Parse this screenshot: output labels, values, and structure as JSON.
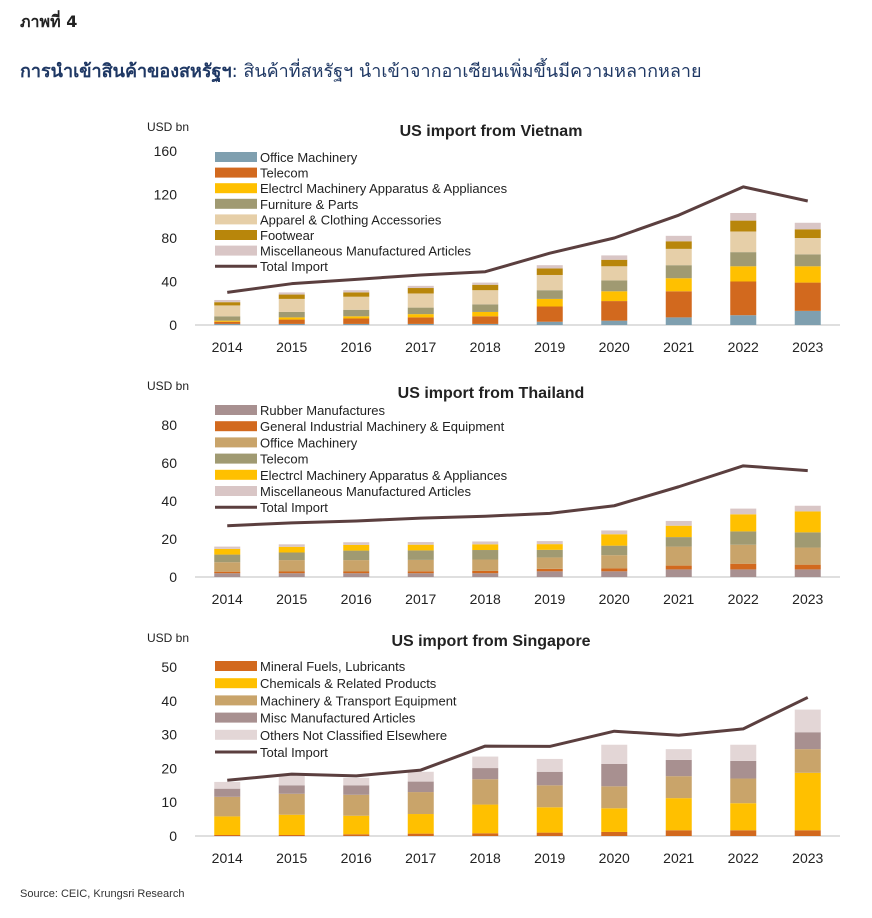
{
  "figure_label": "ภาพที่ 4",
  "headline": {
    "bold": "การนำเข้าสินค้าของสหรัฐฯ",
    "rest": ": สินค้าที่สหรัฐฯ นำเข้าจากอาเซียนเพิ่มขึ้นมีความหลากหลาย"
  },
  "source": "Source: CEIC, Krungsri Research",
  "chart_data": [
    {
      "type": "bar",
      "stacked": true,
      "title": "US import from Vietnam",
      "ylabel": "USD bn",
      "ylim": [
        0,
        160
      ],
      "yticks": [
        0,
        40,
        80,
        120,
        160
      ],
      "legend_position": "top-left",
      "categories": [
        "2014",
        "2015",
        "2016",
        "2017",
        "2018",
        "2019",
        "2020",
        "2021",
        "2022",
        "2023"
      ],
      "series": [
        {
          "name": "Office Machinery",
          "color": "#7F9FAF",
          "values": [
            1,
            1,
            1,
            1,
            1,
            3,
            4,
            7,
            9,
            13
          ]
        },
        {
          "name": "Telecom",
          "color": "#D2691E",
          "values": [
            2,
            4,
            5,
            6,
            7,
            14,
            18,
            24,
            31,
            26
          ]
        },
        {
          "name": "Electrcl Machinery Apparatus & Appliances",
          "color": "#FFC000",
          "values": [
            1,
            2,
            2,
            3,
            4,
            7,
            9,
            12,
            14,
            15
          ]
        },
        {
          "name": "Furniture & Parts",
          "color": "#A09A72",
          "values": [
            4,
            5,
            6,
            6,
            7,
            8,
            10,
            12,
            13,
            11
          ]
        },
        {
          "name": "Apparel & Clothing Accessories",
          "color": "#E6CFA8",
          "values": [
            10,
            12,
            12,
            13,
            13,
            14,
            13,
            15,
            19,
            15
          ]
        },
        {
          "name": "Footwear",
          "color": "#B8860B",
          "values": [
            3,
            4,
            4,
            5,
            5,
            6,
            6,
            7,
            10,
            8
          ]
        },
        {
          "name": "Miscellaneous Manufactured Articles",
          "color": "#D9C6C6",
          "values": [
            2,
            2,
            2,
            2,
            2,
            3,
            4,
            5,
            7,
            6
          ]
        }
      ],
      "line": {
        "name": "Total Import",
        "color": "#5B3F3F",
        "values": [
          30,
          38,
          42,
          46,
          49,
          66,
          80,
          101,
          127,
          114
        ]
      }
    },
    {
      "type": "bar",
      "stacked": true,
      "title": "US import from Thailand",
      "ylabel": "USD bn",
      "ylim": [
        0,
        80
      ],
      "yticks": [
        0,
        20,
        40,
        60,
        80
      ],
      "legend_position": "top-left",
      "categories": [
        "2014",
        "2015",
        "2016",
        "2017",
        "2018",
        "2019",
        "2020",
        "2021",
        "2022",
        "2023"
      ],
      "series": [
        {
          "name": "Rubber Manufactures",
          "color": "#A89090",
          "values": [
            2,
            2,
            2,
            2,
            2,
            3,
            3,
            4,
            4,
            4
          ]
        },
        {
          "name": "General Industrial Machinery & Equipment",
          "color": "#D2691E",
          "values": [
            0.8,
            0.9,
            0.9,
            1,
            1.2,
            1.3,
            1.5,
            2,
            3,
            2.5
          ]
        },
        {
          "name": "Office Machinery",
          "color": "#C9A46A",
          "values": [
            5,
            6,
            6,
            6,
            6,
            6,
            7,
            10,
            10,
            9
          ]
        },
        {
          "name": "Telecom",
          "color": "#A09A72",
          "values": [
            4,
            4,
            5,
            5,
            5,
            4,
            5,
            5,
            7,
            8
          ]
        },
        {
          "name": "Electrcl Machinery Apparatus & Appliances",
          "color": "#FFC000",
          "values": [
            3,
            3,
            3,
            3,
            3,
            3,
            6,
            6,
            9,
            11
          ]
        },
        {
          "name": "Miscellaneous Manufactured Articles",
          "color": "#D9C6C6",
          "values": [
            1.2,
            1.3,
            1.4,
            1.4,
            1.5,
            1.6,
            2,
            2.5,
            3,
            3
          ]
        }
      ],
      "line": {
        "name": "Total Import",
        "color": "#5B3F3F",
        "values": [
          27,
          28.5,
          29.5,
          31,
          32,
          33.5,
          37.5,
          47.5,
          58.5,
          56
        ]
      }
    },
    {
      "type": "bar",
      "stacked": true,
      "title": "US import from Singapore",
      "ylabel": "USD bn",
      "ylim": [
        0,
        50
      ],
      "yticks": [
        0,
        10,
        20,
        30,
        40,
        50
      ],
      "legend_position": "top-left",
      "categories": [
        "2014",
        "2015",
        "2016",
        "2017",
        "2018",
        "2019",
        "2020",
        "2021",
        "2022",
        "2023"
      ],
      "series": [
        {
          "name": "Mineral Fuels, Lubricants",
          "color": "#D2691E",
          "values": [
            0.3,
            0.3,
            0.5,
            0.7,
            0.8,
            1,
            1.2,
            1.7,
            1.7,
            1.7
          ]
        },
        {
          "name": "Chemicals & Related Products",
          "color": "#FFC000",
          "values": [
            5.5,
            6.0,
            5.5,
            5.8,
            8.5,
            7.5,
            7.0,
            9.5,
            8.0,
            17
          ]
        },
        {
          "name": "Machinery & Transport Equipment",
          "color": "#C9A46A",
          "values": [
            5.8,
            6.2,
            6.2,
            6.5,
            7.5,
            6.5,
            6.5,
            6.5,
            7.3,
            7.0
          ]
        },
        {
          "name": "Misc Manufactured Articles",
          "color": "#A89090",
          "values": [
            2.4,
            2.5,
            2.8,
            3.1,
            3.3,
            4,
            6.6,
            4.8,
            5.2,
            5
          ]
        },
        {
          "name": "Others Not Classified Elsewhere",
          "color": "#E3D6D6",
          "values": [
            2,
            3,
            2.2,
            2.9,
            3.4,
            3.8,
            5.7,
            3.2,
            4.8,
            6.7
          ]
        }
      ],
      "line": {
        "name": "Total Import",
        "color": "#5B3F3F",
        "values": [
          16.5,
          18.3,
          17.8,
          19.5,
          26.6,
          26.5,
          31,
          29.8,
          31.7,
          41
        ]
      }
    }
  ]
}
